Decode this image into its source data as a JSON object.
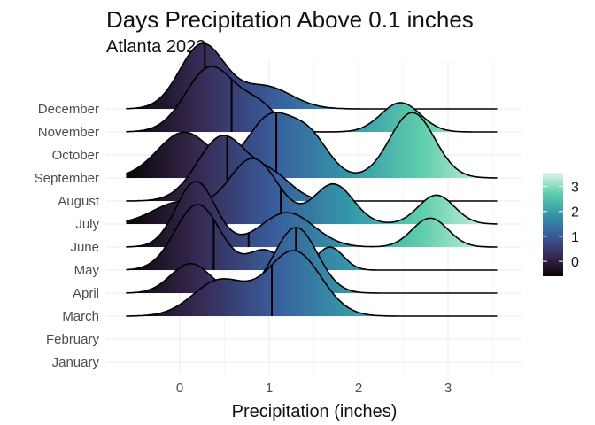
{
  "chart_data": {
    "type": "ridgeline",
    "title": "Days Precipitation Above 0.1 inches",
    "subtitle": "Atlanta 2022",
    "xlabel": "Precipitation (inches)",
    "ylabel": "",
    "xlim": [
      -0.6,
      3.55
    ],
    "x_ticks": [
      0,
      1,
      2,
      3
    ],
    "x_tick_labels": [
      "0",
      "1",
      "2",
      "3"
    ],
    "categories": [
      "January",
      "February",
      "March",
      "April",
      "May",
      "June",
      "July",
      "August",
      "September",
      "October",
      "November",
      "December"
    ],
    "fill_scale": {
      "type": "continuous",
      "variable": "Precipitation (inches)",
      "range": [
        -0.6,
        3.55
      ],
      "ticks": [
        0,
        1,
        2,
        3
      ],
      "tick_labels": [
        "0",
        "1",
        "2",
        "3"
      ],
      "colors": [
        "#0b0405",
        "#382a54",
        "#395d9c",
        "#3497a9",
        "#60ceac",
        "#def5e5"
      ]
    },
    "series": [
      {
        "name": "January",
        "median": null,
        "components": []
      },
      {
        "name": "February",
        "median": null,
        "components": []
      },
      {
        "name": "March",
        "median": 1.03,
        "components": [
          [
            0.45,
            0.3,
            0.55
          ],
          [
            1.28,
            0.3,
            1.0
          ]
        ]
      },
      {
        "name": "April",
        "median": 1.3,
        "components": [
          [
            0.12,
            0.22,
            0.45
          ],
          [
            1.3,
            0.24,
            1.0
          ]
        ]
      },
      {
        "name": "May",
        "median": 0.38,
        "components": [
          [
            0.2,
            0.25,
            1.0
          ],
          [
            0.95,
            0.18,
            0.3
          ],
          [
            1.68,
            0.15,
            0.35
          ]
        ]
      },
      {
        "name": "June",
        "median": 0.77,
        "components": [
          [
            0.18,
            0.22,
            0.95
          ],
          [
            1.2,
            0.3,
            0.5
          ],
          [
            2.8,
            0.2,
            0.42
          ]
        ]
      },
      {
        "name": "July",
        "median": 1.13,
        "components": [
          [
            0.0,
            0.3,
            0.3
          ],
          [
            0.82,
            0.28,
            0.9
          ],
          [
            1.72,
            0.22,
            0.55
          ],
          [
            2.87,
            0.2,
            0.4
          ]
        ]
      },
      {
        "name": "August",
        "median": 0.53,
        "components": [
          [
            0.48,
            0.28,
            1.0
          ],
          [
            1.05,
            0.22,
            0.35
          ]
        ]
      },
      {
        "name": "September",
        "median": 1.08,
        "components": [
          [
            0.05,
            0.3,
            0.35
          ],
          [
            1.0,
            0.25,
            0.45
          ],
          [
            1.45,
            0.22,
            0.3
          ],
          [
            2.6,
            0.25,
            0.5
          ]
        ]
      },
      {
        "name": "October",
        "median": null,
        "components": []
      },
      {
        "name": "November",
        "median": 0.58,
        "components": [
          [
            0.35,
            0.28,
            1.0
          ],
          [
            0.9,
            0.2,
            0.35
          ],
          [
            2.47,
            0.22,
            0.45
          ]
        ]
      },
      {
        "name": "December",
        "median": 0.28,
        "components": [
          [
            0.25,
            0.25,
            1.0
          ],
          [
            0.95,
            0.3,
            0.35
          ]
        ]
      }
    ]
  }
}
